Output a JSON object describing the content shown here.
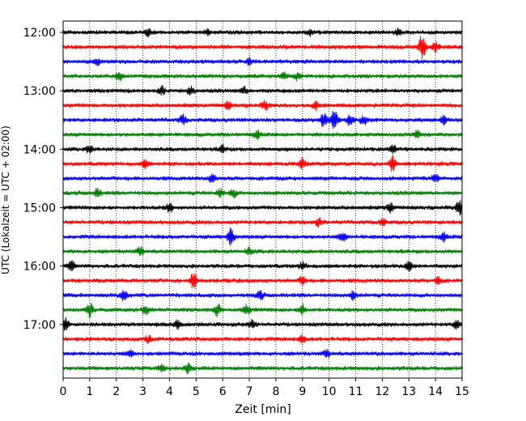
{
  "chart_data": {
    "type": "line",
    "title": "",
    "xlabel": "Zeit  [min]",
    "ylabel": "UTC (Lokalzeit = UTC + 02:00)",
    "xlim": [
      0,
      15
    ],
    "xticks": [
      0,
      1,
      2,
      3,
      4,
      5,
      6,
      7,
      8,
      9,
      10,
      11,
      12,
      13,
      14,
      15
    ],
    "x_grid": "dotted",
    "row_minutes": 15,
    "y_tick_labels": [
      "12:00",
      "13:00",
      "14:00",
      "15:00",
      "16:00",
      "17:00"
    ],
    "row_colors": [
      "#000000",
      "#ff0000",
      "#0000ff",
      "#008000"
    ],
    "rows": [
      {
        "start": "12:00",
        "color": "#000000",
        "events": [
          {
            "t": 3.2,
            "amp": 0.25
          },
          {
            "t": 5.4,
            "amp": 0.2
          },
          {
            "t": 9.3,
            "amp": 0.2
          },
          {
            "t": 12.6,
            "amp": 0.25
          }
        ]
      },
      {
        "start": "12:15",
        "color": "#ff0000",
        "events": [
          {
            "t": 13.5,
            "amp": 1.0
          },
          {
            "t": 14.0,
            "amp": 0.3
          }
        ]
      },
      {
        "start": "12:30",
        "color": "#0000ff",
        "events": [
          {
            "t": 1.3,
            "amp": 0.25
          },
          {
            "t": 7.0,
            "amp": 0.2
          }
        ]
      },
      {
        "start": "12:45",
        "color": "#008000",
        "events": [
          {
            "t": 2.1,
            "amp": 0.3
          },
          {
            "t": 8.3,
            "amp": 0.25
          },
          {
            "t": 8.8,
            "amp": 0.25
          }
        ]
      },
      {
        "start": "13:00",
        "color": "#000000",
        "events": [
          {
            "t": 3.7,
            "amp": 0.3
          },
          {
            "t": 4.8,
            "amp": 0.3
          },
          {
            "t": 6.8,
            "amp": 0.25
          }
        ]
      },
      {
        "start": "13:15",
        "color": "#ff0000",
        "events": [
          {
            "t": 6.2,
            "amp": 0.25
          },
          {
            "t": 7.6,
            "amp": 0.3
          },
          {
            "t": 9.5,
            "amp": 0.25
          }
        ]
      },
      {
        "start": "13:30",
        "color": "#0000ff",
        "events": [
          {
            "t": 4.5,
            "amp": 0.35
          },
          {
            "t": 9.8,
            "amp": 0.5
          },
          {
            "t": 10.2,
            "amp": 0.9
          },
          {
            "t": 10.8,
            "amp": 0.4
          },
          {
            "t": 11.3,
            "amp": 0.35
          },
          {
            "t": 14.3,
            "amp": 0.3
          }
        ]
      },
      {
        "start": "13:45",
        "color": "#008000",
        "events": [
          {
            "t": 7.3,
            "amp": 0.3
          },
          {
            "t": 13.3,
            "amp": 0.3
          }
        ]
      },
      {
        "start": "14:00",
        "color": "#000000",
        "events": [
          {
            "t": 1.0,
            "amp": 0.3
          },
          {
            "t": 6.0,
            "amp": 0.25
          },
          {
            "t": 12.4,
            "amp": 0.3
          }
        ]
      },
      {
        "start": "14:15",
        "color": "#ff0000",
        "events": [
          {
            "t": 3.1,
            "amp": 0.3
          },
          {
            "t": 9.0,
            "amp": 0.4
          },
          {
            "t": 12.4,
            "amp": 0.55
          }
        ]
      },
      {
        "start": "14:30",
        "color": "#0000ff",
        "events": [
          {
            "t": 5.6,
            "amp": 0.35
          },
          {
            "t": 14.0,
            "amp": 0.3
          }
        ]
      },
      {
        "start": "14:45",
        "color": "#008000",
        "events": [
          {
            "t": 1.3,
            "amp": 0.3
          },
          {
            "t": 5.9,
            "amp": 0.3
          },
          {
            "t": 6.4,
            "amp": 0.3
          }
        ]
      },
      {
        "start": "15:00",
        "color": "#000000",
        "events": [
          {
            "t": 4.0,
            "amp": 0.3
          },
          {
            "t": 12.3,
            "amp": 0.35
          },
          {
            "t": 14.9,
            "amp": 0.55
          }
        ]
      },
      {
        "start": "15:15",
        "color": "#ff0000",
        "events": [
          {
            "t": 9.6,
            "amp": 0.3
          },
          {
            "t": 12.0,
            "amp": 0.25
          }
        ]
      },
      {
        "start": "15:30",
        "color": "#0000ff",
        "events": [
          {
            "t": 6.3,
            "amp": 0.6
          },
          {
            "t": 10.5,
            "amp": 0.35
          },
          {
            "t": 14.3,
            "amp": 0.3
          }
        ]
      },
      {
        "start": "15:45",
        "color": "#008000",
        "events": [
          {
            "t": 2.9,
            "amp": 0.3
          },
          {
            "t": 7.0,
            "amp": 0.25
          }
        ]
      },
      {
        "start": "16:00",
        "color": "#000000",
        "events": [
          {
            "t": 0.3,
            "amp": 0.35
          },
          {
            "t": 9.0,
            "amp": 0.25
          },
          {
            "t": 13.0,
            "amp": 0.45
          }
        ]
      },
      {
        "start": "16:15",
        "color": "#ff0000",
        "events": [
          {
            "t": 4.9,
            "amp": 0.55
          },
          {
            "t": 9.0,
            "amp": 0.3
          },
          {
            "t": 14.1,
            "amp": 0.3
          }
        ]
      },
      {
        "start": "16:30",
        "color": "#0000ff",
        "events": [
          {
            "t": 2.3,
            "amp": 0.45
          },
          {
            "t": 7.4,
            "amp": 0.3
          },
          {
            "t": 10.9,
            "amp": 0.3
          }
        ]
      },
      {
        "start": "16:45",
        "color": "#008000",
        "events": [
          {
            "t": 1.0,
            "amp": 0.55
          },
          {
            "t": 3.1,
            "amp": 0.35
          },
          {
            "t": 5.8,
            "amp": 0.45
          },
          {
            "t": 6.9,
            "amp": 0.4
          },
          {
            "t": 9.0,
            "amp": 0.35
          }
        ]
      },
      {
        "start": "17:00",
        "color": "#000000",
        "events": [
          {
            "t": 0.1,
            "amp": 0.45
          },
          {
            "t": 4.3,
            "amp": 0.3
          },
          {
            "t": 7.1,
            "amp": 0.3
          },
          {
            "t": 14.8,
            "amp": 0.3
          }
        ]
      },
      {
        "start": "17:15",
        "color": "#ff0000",
        "events": [
          {
            "t": 3.2,
            "amp": 0.25
          },
          {
            "t": 9.0,
            "amp": 0.25
          }
        ]
      },
      {
        "start": "17:30",
        "color": "#0000ff",
        "events": [
          {
            "t": 2.5,
            "amp": 0.25
          },
          {
            "t": 9.9,
            "amp": 0.25
          }
        ]
      },
      {
        "start": "17:45",
        "color": "#008000",
        "events": [
          {
            "t": 3.7,
            "amp": 0.3
          },
          {
            "t": 4.7,
            "amp": 0.3
          }
        ]
      }
    ]
  }
}
